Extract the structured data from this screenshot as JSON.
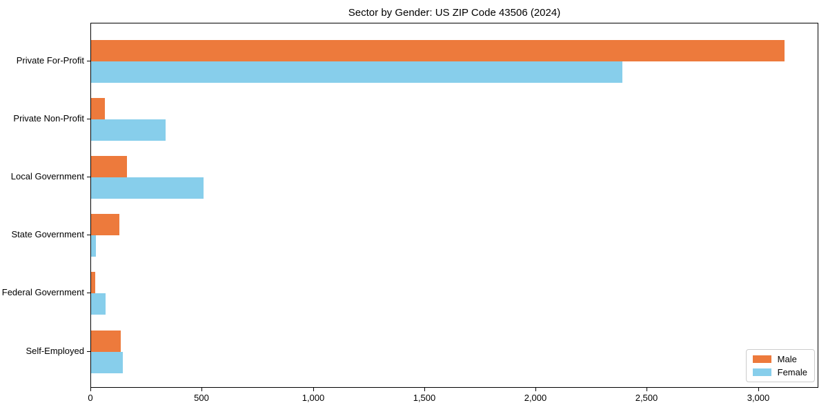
{
  "chart_data": {
    "type": "bar",
    "orientation": "horizontal",
    "title": "Sector by Gender: US ZIP Code 43506 (2024)",
    "categories": [
      "Private For-Profit",
      "Private Non-Profit",
      "Local Government",
      "State Government",
      "Federal Government",
      "Self-Employed"
    ],
    "series": [
      {
        "name": "Male",
        "color": "#ED7A3C",
        "values": [
          3115,
          61,
          160,
          128,
          19,
          132
        ]
      },
      {
        "name": "Female",
        "color": "#87CEEB",
        "values": [
          2388,
          336,
          505,
          23,
          66,
          142
        ]
      }
    ],
    "xlabel": "",
    "ylabel": "",
    "xlim": [
      0,
      3271
    ],
    "xticks": [
      0,
      500,
      1000,
      1500,
      2000,
      2500,
      3000
    ],
    "xtick_labels": [
      "0",
      "500",
      "1,000",
      "1,500",
      "2,000",
      "2,500",
      "3,000"
    ],
    "grid": false,
    "legend": {
      "position": "lower right"
    },
    "colors": {
      "background": "#ffffff",
      "spine": "#000000",
      "text": "#000000",
      "legend_border": "#cccccc"
    }
  }
}
